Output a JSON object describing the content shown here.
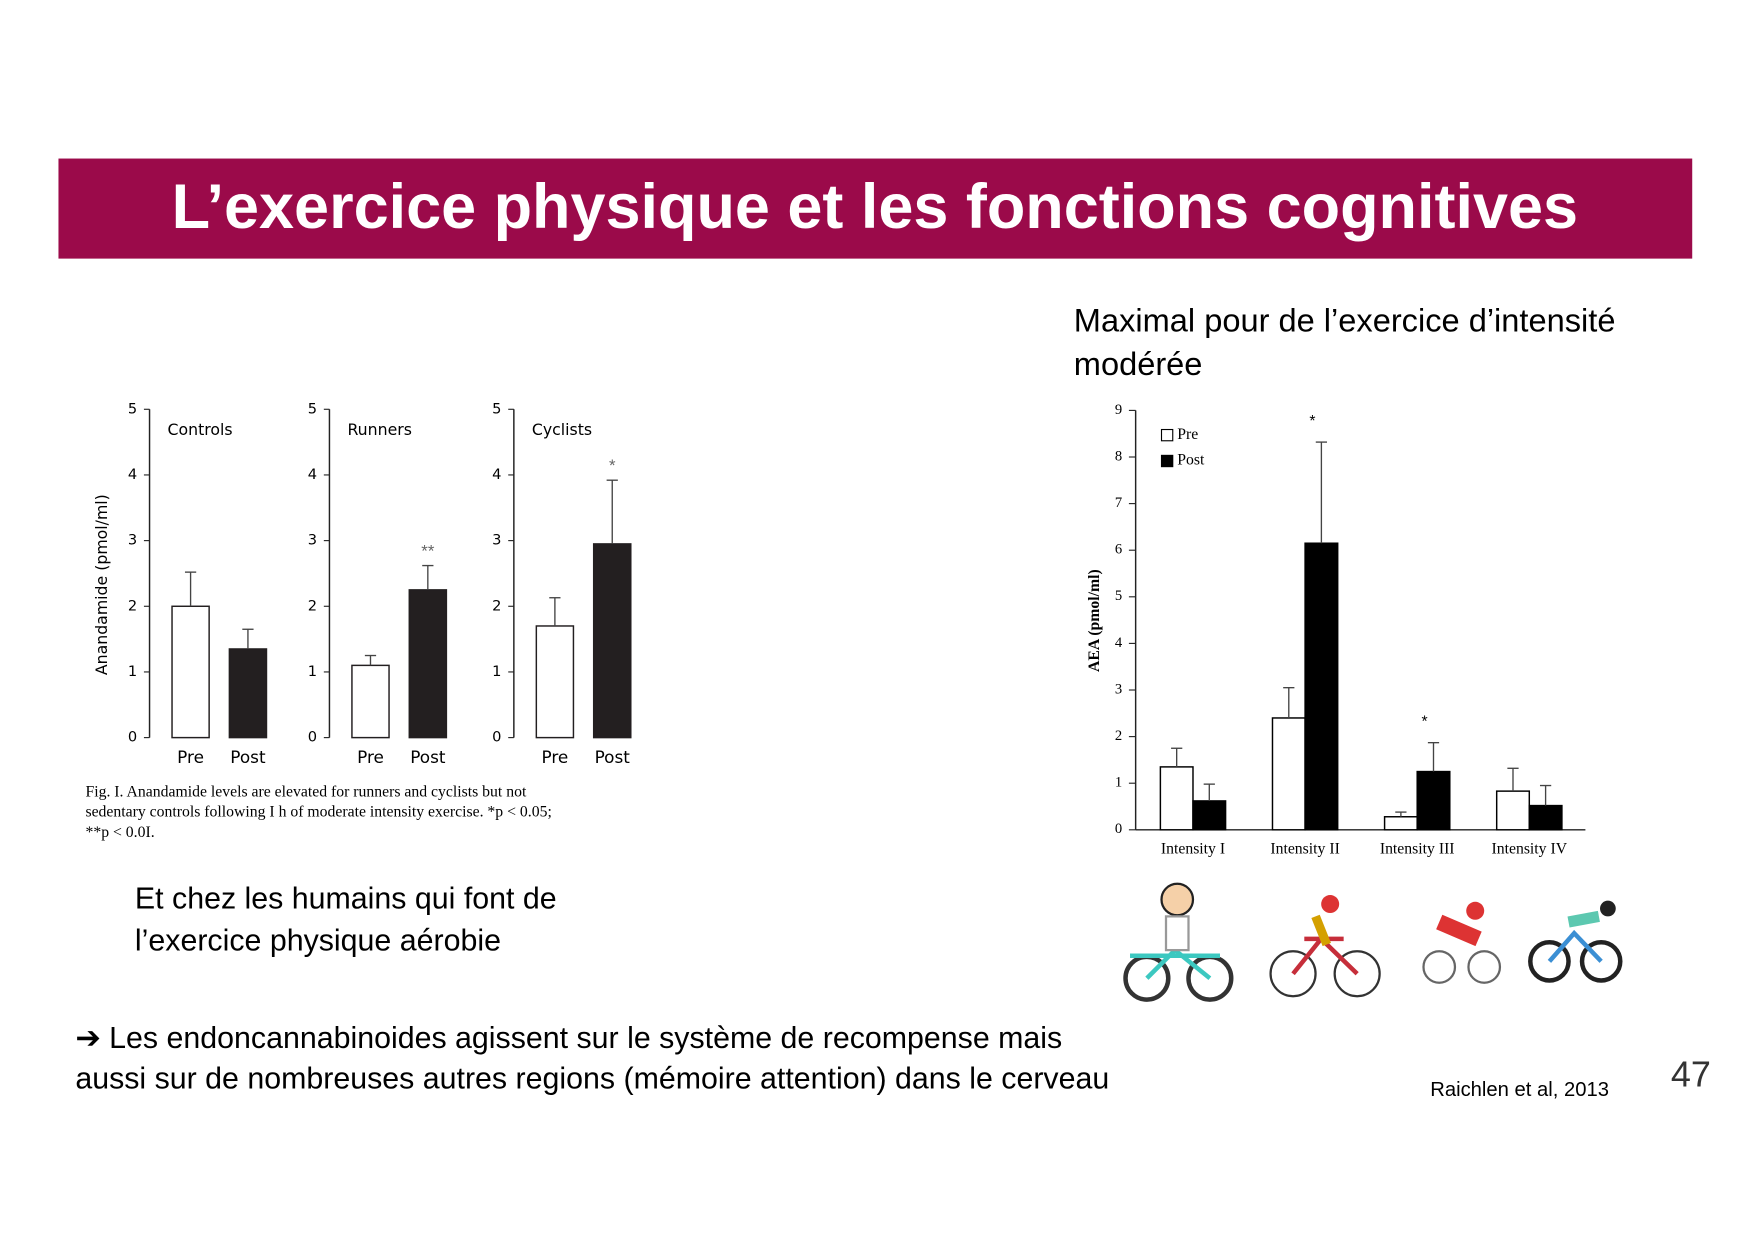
{
  "slide": {
    "title": "L’exercice physique et les fonctions cognitives",
    "right_heading": [
      "Maximal pour de l’exercice d’intensité",
      "modérée"
    ],
    "left_text": [
      "Et chez les humains qui font de",
      "l’exercice physique aérobie"
    ],
    "conclusion": [
      "➔ Les endoncannabinoides agissent sur le système de recompense mais",
      "aussi sur de nombreuses autres regions (mémoire attention) dans le cerveau"
    ],
    "reference": "Raichlen et al, 2013",
    "page_number": "47",
    "figure_caption": [
      "Fig. I.  Anandamide levels are elevated for runners and cyclists but not",
      "sedentary controls following I h of moderate intensity exercise. *p < 0.05;",
      "**p < 0.0I."
    ]
  },
  "chart_data": [
    {
      "type": "bar",
      "title": "Controls",
      "y_label": "Anandamide (pmol/ml)",
      "categories": [
        "Pre",
        "Post"
      ],
      "values": [
        2.0,
        1.35
      ],
      "errors": [
        0.52,
        0.3
      ],
      "annotations": [
        null,
        null
      ],
      "colors": [
        "#ffffff",
        "#231f20"
      ],
      "ylim": [
        0,
        5
      ],
      "yticks": [
        0,
        1,
        2,
        3,
        4,
        5
      ]
    },
    {
      "type": "bar",
      "title": "Runners",
      "categories": [
        "Pre",
        "Post"
      ],
      "values": [
        1.1,
        2.25
      ],
      "errors": [
        0.15,
        0.37
      ],
      "annotations": [
        null,
        "**"
      ],
      "colors": [
        "#ffffff",
        "#231f20"
      ],
      "ylim": [
        0,
        5
      ],
      "yticks": [
        0,
        1,
        2,
        3,
        4,
        5
      ]
    },
    {
      "type": "bar",
      "title": "Cyclists",
      "categories": [
        "Pre",
        "Post"
      ],
      "values": [
        1.7,
        2.95
      ],
      "errors": [
        0.43,
        0.97
      ],
      "annotations": [
        null,
        "*"
      ],
      "colors": [
        "#ffffff",
        "#231f20"
      ],
      "ylim": [
        0,
        5
      ],
      "yticks": [
        0,
        1,
        2,
        3,
        4,
        5
      ]
    },
    {
      "type": "grouped-bar",
      "y_label": "AEA (pmol/ml)",
      "categories": [
        "Intensity I",
        "Intensity II",
        "Intensity III",
        "Intensity IV"
      ],
      "series": [
        {
          "name": "Pre",
          "color": "#ffffff",
          "values": [
            1.35,
            2.4,
            0.28,
            0.83
          ],
          "errors": [
            0.4,
            0.65,
            0.1,
            0.49
          ],
          "annotations": [
            null,
            null,
            null,
            null
          ]
        },
        {
          "name": "Post",
          "color": "#000000",
          "values": [
            0.62,
            6.15,
            1.25,
            0.52
          ],
          "errors": [
            0.36,
            2.17,
            0.62,
            0.43
          ],
          "annotations": [
            null,
            "*",
            "*",
            null
          ]
        }
      ],
      "ylim": [
        0,
        9
      ],
      "yticks": [
        0,
        1,
        2,
        3,
        4,
        5,
        6,
        7,
        8,
        9
      ],
      "legend": "top-left"
    }
  ]
}
